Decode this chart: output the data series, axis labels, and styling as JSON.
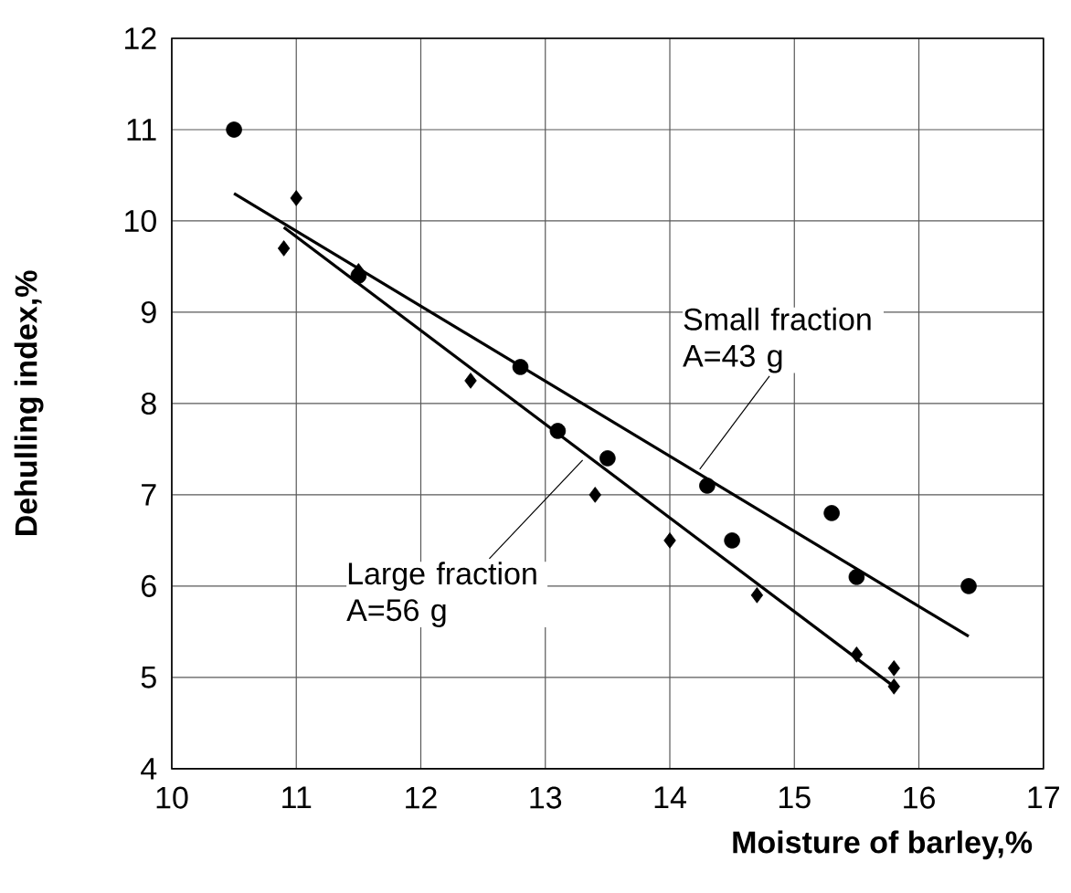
{
  "chart_data": {
    "type": "scatter",
    "xlabel": "Moisture of barley,%",
    "ylabel": "Dehulling index,%",
    "xlim": [
      10,
      17
    ],
    "ylim": [
      4,
      12
    ],
    "xticks": [
      10,
      11,
      12,
      13,
      14,
      15,
      16,
      17
    ],
    "yticks": [
      4,
      5,
      6,
      7,
      8,
      9,
      10,
      11,
      12
    ],
    "grid": true,
    "series": [
      {
        "marker": "circle",
        "color": "#000000",
        "x": [
          10.5,
          11.5,
          12.8,
          13.1,
          13.5,
          14.3,
          14.5,
          15.3,
          15.5,
          16.4
        ],
        "values": [
          11.0,
          9.4,
          8.4,
          7.7,
          7.4,
          7.1,
          6.5,
          6.8,
          6.1,
          6.0
        ]
      },
      {
        "marker": "diamond",
        "color": "#000000",
        "x": [
          10.9,
          11.0,
          11.5,
          12.4,
          13.4,
          14.0,
          14.7,
          15.5,
          15.8,
          15.8
        ],
        "values": [
          9.7,
          10.25,
          9.45,
          8.25,
          7.0,
          6.5,
          5.9,
          5.25,
          5.1,
          4.9
        ]
      },
      {
        "type": "line",
        "marker": "none",
        "color": "#000000",
        "x": [
          10.5,
          16.4
        ],
        "values": [
          10.3,
          5.45
        ]
      },
      {
        "type": "line",
        "marker": "none",
        "color": "#000000",
        "x": [
          10.9,
          15.8
        ],
        "values": [
          9.93,
          4.9
        ]
      }
    ],
    "annotations": [
      {
        "text": "Small fraction A=43 g",
        "x": 14.24,
        "y": 7.28
      },
      {
        "text": "Large fraction A=56 g",
        "x": 13.3,
        "y": 7.38
      }
    ]
  }
}
